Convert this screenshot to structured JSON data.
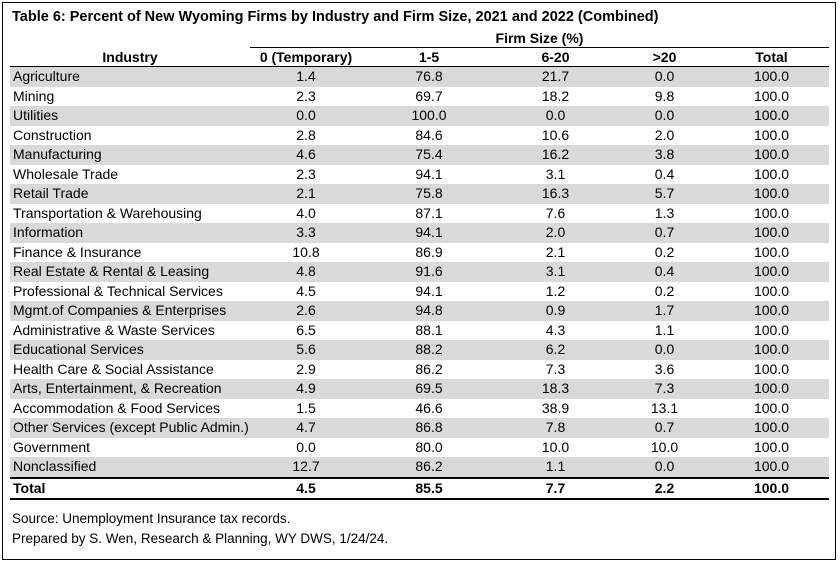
{
  "title": "Table 6: Percent of New Wyoming Firms by Industry and Firm Size, 2021 and 2022 (Combined)",
  "header": {
    "industry": "Industry",
    "group": "Firm Size (%)",
    "columns": [
      "0 (Temporary)",
      "1-5",
      "6-20",
      ">20",
      "Total"
    ]
  },
  "rows": [
    {
      "industry": "Agriculture",
      "values": [
        "1.4",
        "76.8",
        "21.7",
        "0.0",
        "100.0"
      ]
    },
    {
      "industry": "Mining",
      "values": [
        "2.3",
        "69.7",
        "18.2",
        "9.8",
        "100.0"
      ]
    },
    {
      "industry": "Utilities",
      "values": [
        "0.0",
        "100.0",
        "0.0",
        "0.0",
        "100.0"
      ]
    },
    {
      "industry": "Construction",
      "values": [
        "2.8",
        "84.6",
        "10.6",
        "2.0",
        "100.0"
      ]
    },
    {
      "industry": "Manufacturing",
      "values": [
        "4.6",
        "75.4",
        "16.2",
        "3.8",
        "100.0"
      ]
    },
    {
      "industry": "Wholesale Trade",
      "values": [
        "2.3",
        "94.1",
        "3.1",
        "0.4",
        "100.0"
      ]
    },
    {
      "industry": "Retail Trade",
      "values": [
        "2.1",
        "75.8",
        "16.3",
        "5.7",
        "100.0"
      ]
    },
    {
      "industry": "Transportation & Warehousing",
      "values": [
        "4.0",
        "87.1",
        "7.6",
        "1.3",
        "100.0"
      ]
    },
    {
      "industry": "Information",
      "values": [
        "3.3",
        "94.1",
        "2.0",
        "0.7",
        "100.0"
      ]
    },
    {
      "industry": "Finance & Insurance",
      "values": [
        "10.8",
        "86.9",
        "2.1",
        "0.2",
        "100.0"
      ]
    },
    {
      "industry": "Real Estate & Rental & Leasing",
      "values": [
        "4.8",
        "91.6",
        "3.1",
        "0.4",
        "100.0"
      ]
    },
    {
      "industry": "Professional & Technical Services",
      "values": [
        "4.5",
        "94.1",
        "1.2",
        "0.2",
        "100.0"
      ]
    },
    {
      "industry": "Mgmt.of Companies & Enterprises",
      "values": [
        "2.6",
        "94.8",
        "0.9",
        "1.7",
        "100.0"
      ]
    },
    {
      "industry": "Administrative & Waste Services",
      "values": [
        "6.5",
        "88.1",
        "4.3",
        "1.1",
        "100.0"
      ]
    },
    {
      "industry": "Educational Services",
      "values": [
        "5.6",
        "88.2",
        "6.2",
        "0.0",
        "100.0"
      ]
    },
    {
      "industry": "Health Care & Social Assistance",
      "values": [
        "2.9",
        "86.2",
        "7.3",
        "3.6",
        "100.0"
      ]
    },
    {
      "industry": "Arts, Entertainment, & Recreation",
      "values": [
        "4.9",
        "69.5",
        "18.3",
        "7.3",
        "100.0"
      ]
    },
    {
      "industry": "Accommodation & Food Services",
      "values": [
        "1.5",
        "46.6",
        "38.9",
        "13.1",
        "100.0"
      ]
    },
    {
      "industry": "Other Services (except Public Admin.)",
      "values": [
        "4.7",
        "86.8",
        "7.8",
        "0.7",
        "100.0"
      ]
    },
    {
      "industry": "Government",
      "values": [
        "0.0",
        "80.0",
        "10.0",
        "10.0",
        "100.0"
      ]
    },
    {
      "industry": "Nonclassified",
      "values": [
        "12.7",
        "86.2",
        "1.1",
        "0.0",
        "100.0"
      ]
    }
  ],
  "total": {
    "industry": "Total",
    "values": [
      "4.5",
      "85.5",
      "7.7",
      "2.2",
      "100.0"
    ]
  },
  "notes": [
    "Source: Unemployment Insurance tax records.",
    "Prepared by S. Wen, Research & Planning, WY DWS, 1/24/24."
  ]
}
